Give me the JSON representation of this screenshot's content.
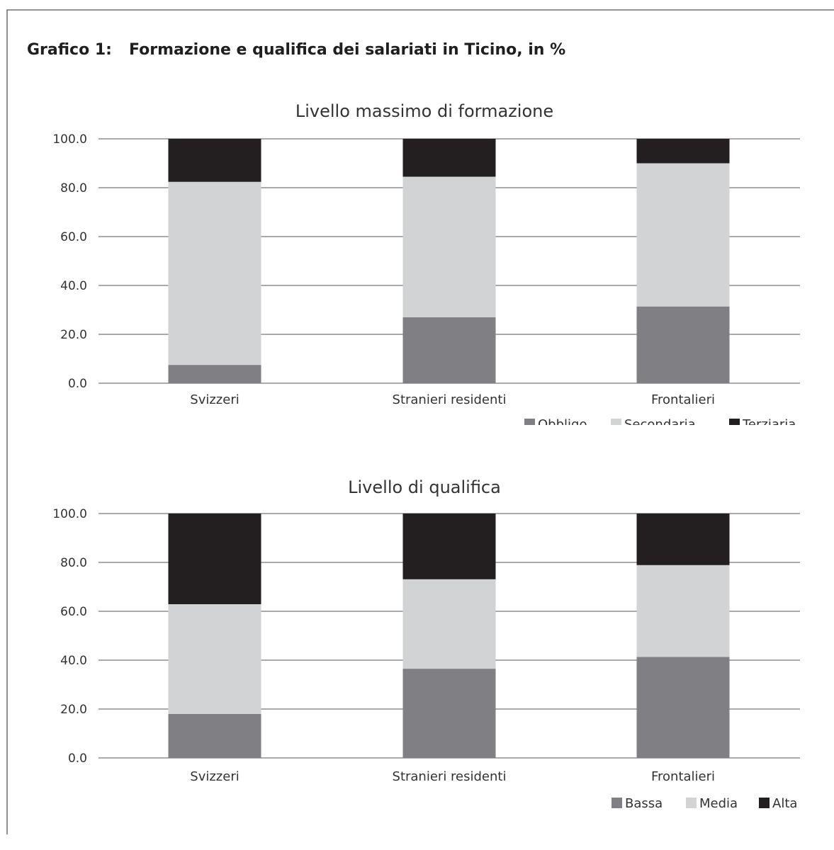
{
  "figure": {
    "label": "Grafico 1:",
    "title": "Formazione e qualifica dei salariati in Ticino, in %"
  },
  "chart_data": [
    {
      "type": "bar",
      "stacked": true,
      "title": "Livello massimo di formazione",
      "categories": [
        "Svizzeri",
        "Stranieri residenti",
        "Frontalieri"
      ],
      "ylim": [
        0,
        100
      ],
      "yticks": [
        "0.0",
        "20.0",
        "40.0",
        "60.0",
        "80.0",
        "100.0"
      ],
      "grid": true,
      "legend_position": "bottom-right",
      "series": [
        {
          "name": "Obbligo",
          "color": "#808084",
          "values": [
            7.5,
            27.0,
            31.4
          ]
        },
        {
          "name": "Secondaria",
          "color": "#d2d3d5",
          "values": [
            74.9,
            57.5,
            58.6
          ]
        },
        {
          "name": "Terziaria",
          "color": "#231f20",
          "values": [
            17.6,
            15.5,
            10.0
          ]
        }
      ]
    },
    {
      "type": "bar",
      "stacked": true,
      "title": "Livello di qualifica",
      "categories": [
        "Svizzeri",
        "Stranieri residenti",
        "Frontalieri"
      ],
      "ylim": [
        0,
        100
      ],
      "yticks": [
        "0.0",
        "20.0",
        "40.0",
        "60.0",
        "80.0",
        "100.0"
      ],
      "grid": true,
      "legend_position": "bottom-right",
      "series": [
        {
          "name": "Bassa",
          "color": "#808084",
          "values": [
            18.0,
            36.5,
            41.3
          ]
        },
        {
          "name": "Media",
          "color": "#d2d3d5",
          "values": [
            44.9,
            36.6,
            37.6
          ]
        },
        {
          "name": "Alta",
          "color": "#231f20",
          "values": [
            37.1,
            26.9,
            21.1
          ]
        }
      ]
    }
  ]
}
